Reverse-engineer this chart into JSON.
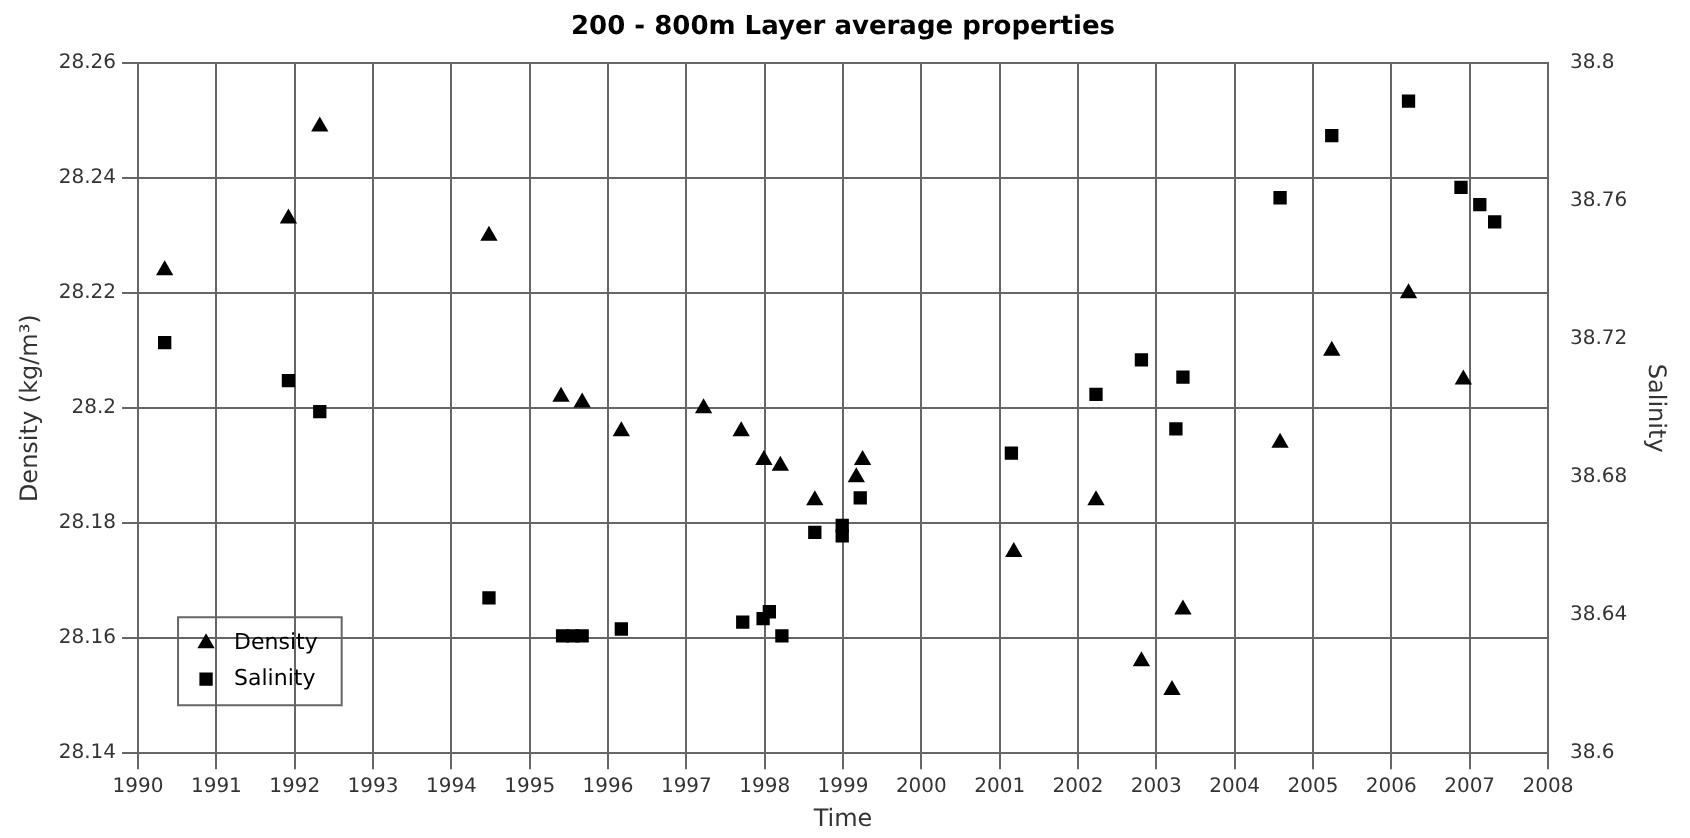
{
  "chart_data": {
    "type": "scatter",
    "title": "200 - 800m Layer average properties",
    "xlabel": "Time",
    "ylabel": "Density (kg/m³)",
    "y2label": "Salinity",
    "xlim": [
      1990,
      2008
    ],
    "xticks": [
      1990,
      1991,
      1992,
      1993,
      1994,
      1995,
      1996,
      1997,
      1998,
      1999,
      2000,
      2001,
      2002,
      2003,
      2004,
      2005,
      2006,
      2007,
      2008
    ],
    "ylim": [
      28.14,
      28.26
    ],
    "yticks": [
      28.14,
      28.16,
      28.18,
      28.2,
      28.22,
      28.24,
      28.26
    ],
    "y2lim": [
      38.6,
      38.8
    ],
    "y2ticks": [
      38.6,
      38.64,
      38.68,
      38.72,
      38.76,
      38.8
    ],
    "grid": true,
    "legend": "bottom left",
    "series": [
      {
        "name": "Density",
        "color": "#000000",
        "marker": "triangle",
        "x": [
          1990.34,
          1991.92,
          1992.32,
          1994.48,
          1995.4,
          1995.67,
          1996.17,
          1997.22,
          1997.7,
          1997.99,
          1998.2,
          1998.64,
          1999.17,
          1999.25,
          2001.18,
          2002.23,
          2002.81,
          2003.2,
          2003.34,
          2004.58,
          2005.24,
          2006.22,
          2006.92
        ],
        "values": [
          28.224,
          28.233,
          28.249,
          28.23,
          28.202,
          28.201,
          28.196,
          28.2,
          28.196,
          28.191,
          28.19,
          28.184,
          28.188,
          28.191,
          28.175,
          28.184,
          28.156,
          28.151,
          28.165,
          28.194,
          28.21,
          28.22,
          28.205
        ]
      },
      {
        "name": "Salinity",
        "color": "#000000",
        "marker": "square",
        "axis": "y2",
        "x": [
          1990.34,
          1991.92,
          1992.32,
          1994.48,
          1995.42,
          1995.55,
          1995.67,
          1996.17,
          1997.72,
          1997.98,
          1998.06,
          1998.22,
          1998.64,
          1998.99,
          1998.99,
          1999.22,
          2001.15,
          2002.23,
          2002.81,
          2003.25,
          2003.34,
          2004.58,
          2005.24,
          2006.22,
          2006.89,
          2007.13,
          2007.32
        ],
        "values": [
          38.719,
          38.708,
          38.699,
          38.645,
          38.634,
          38.634,
          38.634,
          38.636,
          38.638,
          38.639,
          38.641,
          38.634,
          38.664,
          38.663,
          38.666,
          38.674,
          38.687,
          38.704,
          38.714,
          38.694,
          38.709,
          38.761,
          38.779,
          38.789,
          38.764,
          38.759,
          38.754
        ]
      }
    ]
  }
}
